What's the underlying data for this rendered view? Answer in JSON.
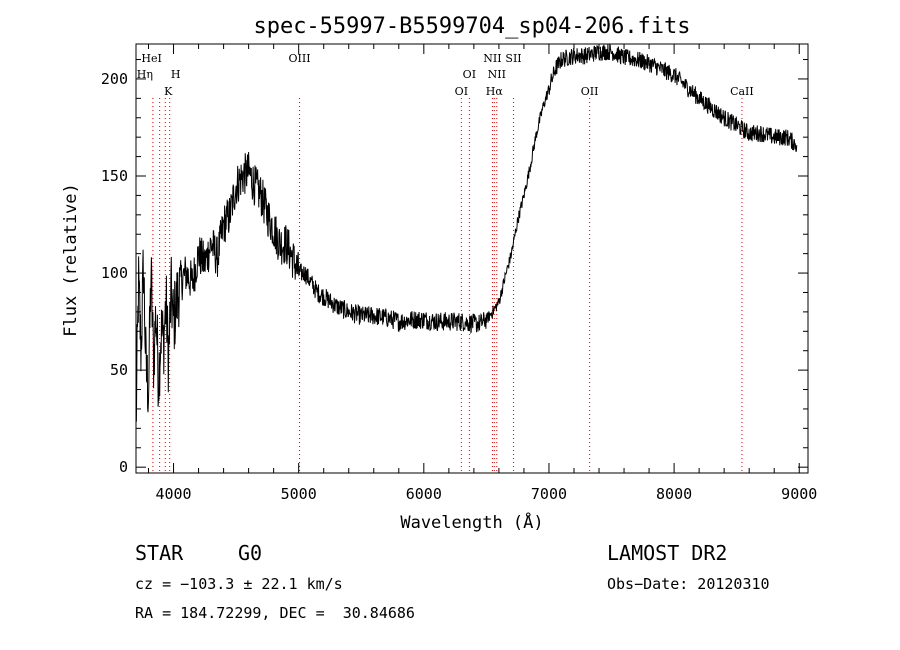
{
  "chart_data": {
    "type": "line",
    "title": "spec-55997-B5599704_sp04-206.fits",
    "xlabel": "Wavelength (Å)",
    "ylabel": "Flux (relative)",
    "xlim": [
      3700,
      9070
    ],
    "ylim": [
      -3,
      218
    ],
    "xticks": [
      4000,
      5000,
      6000,
      7000,
      8000,
      9000
    ],
    "yticks": [
      0,
      50,
      100,
      150,
      200
    ],
    "grid": false,
    "series": [
      {
        "x": [
          3700,
          3720,
          3740,
          3760,
          3780,
          3800,
          3820,
          3840,
          3860,
          3880,
          3900,
          3920,
          3940,
          3960,
          3980,
          4000,
          4050,
          4100,
          4150,
          4200,
          4250,
          4300,
          4350,
          4400,
          4450,
          4500,
          4550,
          4600,
          4650,
          4700,
          4750,
          4800,
          4850,
          4900,
          4950,
          5000,
          5050,
          5100,
          5150,
          5200,
          5300,
          5400,
          5500,
          5600,
          5700,
          5800,
          5900,
          6000,
          6100,
          6200,
          6300,
          6400,
          6450,
          6500,
          6550,
          6600,
          6650,
          6700,
          6750,
          6800,
          6850,
          6900,
          6950,
          7000,
          7050,
          7100,
          7200,
          7300,
          7400,
          7500,
          7600,
          7700,
          7800,
          7900,
          8000,
          8100,
          8200,
          8300,
          8400,
          8500,
          8600,
          8700,
          8800,
          8900,
          8980
        ],
        "y": [
          20,
          95,
          60,
          105,
          50,
          40,
          100,
          55,
          80,
          45,
          70,
          65,
          85,
          55,
          90,
          75,
          95,
          100,
          95,
          110,
          105,
          115,
          108,
          125,
          130,
          145,
          150,
          152,
          145,
          140,
          130,
          123,
          115,
          115,
          108,
          100,
          100,
          95,
          90,
          88,
          83,
          80,
          78,
          78,
          77,
          75,
          76,
          76,
          75,
          75,
          75,
          74,
          74,
          76,
          80,
          85,
          98,
          110,
          127,
          140,
          155,
          172,
          185,
          195,
          205,
          210,
          212,
          212,
          214,
          214,
          211,
          210,
          208,
          205,
          202,
          196,
          190,
          185,
          180,
          176,
          172,
          172,
          170,
          170,
          166
        ],
        "color": "#000000"
      }
    ],
    "lines": [
      {
        "name": "HeI",
        "x": 3889
      },
      {
        "name": "Hη",
        "x": 3835
      },
      {
        "name": "H",
        "x": 3969
      },
      {
        "name": "K",
        "x": 3934
      },
      {
        "name": "OIII",
        "x": 5007
      },
      {
        "name": "OI",
        "x": 6300
      },
      {
        "name": "OI",
        "x": 6364
      },
      {
        "name": "NII",
        "x": 6548
      },
      {
        "name": "NII",
        "x": 6583
      },
      {
        "name": "Hα",
        "x": 6563
      },
      {
        "name": "SII",
        "x": 6717
      },
      {
        "name": "OII",
        "x": 7325
      },
      {
        "name": "CaII",
        "x": 8542
      }
    ]
  },
  "info": {
    "class": "STAR",
    "subclass": "G0",
    "survey": "LAMOST DR2",
    "cz": "cz = −103.3 ± 22.1 km/s",
    "obs_date": "Obs−Date: 20120310",
    "coords": "RA = 184.72299, DEC =  30.84686"
  }
}
